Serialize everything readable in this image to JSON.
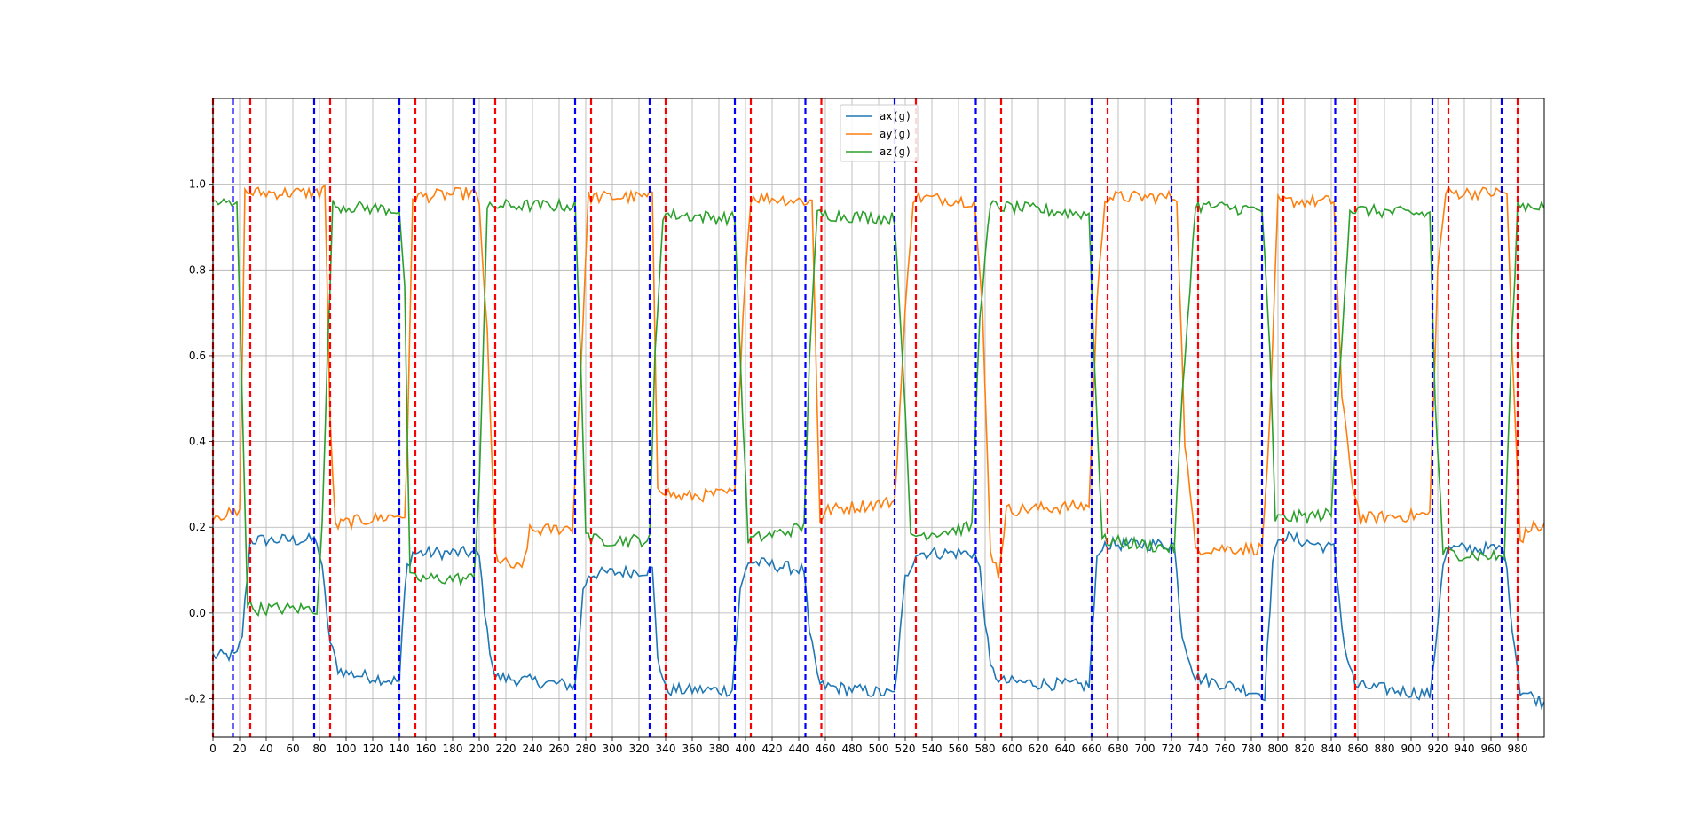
{
  "chart_data": {
    "type": "line",
    "title": "",
    "xlabel": "",
    "ylabel": "",
    "xlim": [
      0,
      1000
    ],
    "ylim": [
      -0.29,
      1.2
    ],
    "grid": true,
    "legend_position": "top-center",
    "x_ticks": [
      0,
      20,
      40,
      60,
      80,
      100,
      120,
      140,
      160,
      180,
      200,
      220,
      240,
      260,
      280,
      300,
      320,
      340,
      360,
      380,
      400,
      420,
      440,
      460,
      480,
      500,
      520,
      540,
      560,
      580,
      600,
      620,
      640,
      660,
      680,
      700,
      720,
      740,
      760,
      780,
      800,
      820,
      840,
      860,
      880,
      900,
      920,
      940,
      960,
      980
    ],
    "y_ticks": [
      -0.2,
      0.0,
      0.2,
      0.4,
      0.6,
      0.8,
      1.0
    ],
    "series": [
      {
        "name": "ax(g)",
        "color": "#1f77b4",
        "knots": [
          [
            0,
            -0.1
          ],
          [
            18,
            -0.1
          ],
          [
            22,
            -0.05
          ],
          [
            28,
            0.17
          ],
          [
            78,
            0.17
          ],
          [
            82,
            0.1
          ],
          [
            88,
            -0.07
          ],
          [
            94,
            -0.13
          ],
          [
            100,
            -0.14
          ],
          [
            140,
            -0.16
          ],
          [
            145,
            0.1
          ],
          [
            150,
            0.14
          ],
          [
            196,
            0.14
          ],
          [
            200,
            0.13
          ],
          [
            206,
            -0.05
          ],
          [
            212,
            -0.15
          ],
          [
            272,
            -0.17
          ],
          [
            278,
            0.05
          ],
          [
            282,
            0.09
          ],
          [
            330,
            0.1
          ],
          [
            334,
            -0.1
          ],
          [
            340,
            -0.18
          ],
          [
            390,
            -0.18
          ],
          [
            396,
            0.05
          ],
          [
            402,
            0.12
          ],
          [
            444,
            0.1
          ],
          [
            448,
            -0.05
          ],
          [
            456,
            -0.17
          ],
          [
            512,
            -0.19
          ],
          [
            520,
            0.08
          ],
          [
            528,
            0.14
          ],
          [
            572,
            0.14
          ],
          [
            576,
            0.1
          ],
          [
            584,
            -0.13
          ],
          [
            592,
            -0.16
          ],
          [
            658,
            -0.17
          ],
          [
            664,
            0.12
          ],
          [
            668,
            0.16
          ],
          [
            722,
            0.16
          ],
          [
            728,
            -0.05
          ],
          [
            738,
            -0.15
          ],
          [
            790,
            -0.19
          ],
          [
            796,
            0.12
          ],
          [
            802,
            0.18
          ],
          [
            842,
            0.15
          ],
          [
            850,
            -0.08
          ],
          [
            858,
            -0.17
          ],
          [
            915,
            -0.19
          ],
          [
            924,
            0.12
          ],
          [
            928,
            0.15
          ],
          [
            970,
            0.15
          ],
          [
            976,
            -0.03
          ],
          [
            982,
            -0.18
          ],
          [
            1000,
            -0.21
          ]
        ]
      },
      {
        "name": "ay(g)",
        "color": "#ff7f0e",
        "knots": [
          [
            0,
            0.23
          ],
          [
            20,
            0.23
          ],
          [
            24,
            0.98
          ],
          [
            80,
            0.98
          ],
          [
            84,
            1.0
          ],
          [
            88,
            0.45
          ],
          [
            92,
            0.2
          ],
          [
            98,
            0.21
          ],
          [
            145,
            0.23
          ],
          [
            150,
            0.97
          ],
          [
            196,
            0.98
          ],
          [
            200,
            0.95
          ],
          [
            206,
            0.65
          ],
          [
            212,
            0.14
          ],
          [
            216,
            0.12
          ],
          [
            232,
            0.1
          ],
          [
            238,
            0.19
          ],
          [
            270,
            0.2
          ],
          [
            276,
            0.55
          ],
          [
            282,
            0.97
          ],
          [
            330,
            0.97
          ],
          [
            334,
            0.3
          ],
          [
            342,
            0.28
          ],
          [
            350,
            0.27
          ],
          [
            392,
            0.28
          ],
          [
            398,
            0.7
          ],
          [
            404,
            0.97
          ],
          [
            450,
            0.96
          ],
          [
            456,
            0.22
          ],
          [
            462,
            0.24
          ],
          [
            512,
            0.26
          ],
          [
            520,
            0.7
          ],
          [
            526,
            0.97
          ],
          [
            572,
            0.96
          ],
          [
            578,
            0.7
          ],
          [
            584,
            0.15
          ],
          [
            590,
            0.09
          ],
          [
            596,
            0.24
          ],
          [
            658,
            0.25
          ],
          [
            664,
            0.72
          ],
          [
            670,
            0.97
          ],
          [
            724,
            0.97
          ],
          [
            730,
            0.4
          ],
          [
            738,
            0.15
          ],
          [
            788,
            0.15
          ],
          [
            794,
            0.45
          ],
          [
            800,
            0.96
          ],
          [
            842,
            0.96
          ],
          [
            848,
            0.5
          ],
          [
            856,
            0.3
          ],
          [
            862,
            0.22
          ],
          [
            914,
            0.23
          ],
          [
            920,
            0.8
          ],
          [
            926,
            0.98
          ],
          [
            972,
            0.98
          ],
          [
            976,
            0.6
          ],
          [
            982,
            0.17
          ],
          [
            990,
            0.2
          ],
          [
            1000,
            0.2
          ]
        ]
      },
      {
        "name": "az(g)",
        "color": "#2ca02c",
        "knots": [
          [
            0,
            0.96
          ],
          [
            18,
            0.95
          ],
          [
            22,
            0.5
          ],
          [
            26,
            0.02
          ],
          [
            30,
            0.01
          ],
          [
            78,
            0.01
          ],
          [
            82,
            0.2
          ],
          [
            86,
            0.6
          ],
          [
            90,
            0.95
          ],
          [
            140,
            0.94
          ],
          [
            144,
            0.75
          ],
          [
            148,
            0.08
          ],
          [
            196,
            0.08
          ],
          [
            200,
            0.3
          ],
          [
            206,
            0.94
          ],
          [
            212,
            0.95
          ],
          [
            272,
            0.95
          ],
          [
            276,
            0.6
          ],
          [
            280,
            0.2
          ],
          [
            284,
            0.17
          ],
          [
            328,
            0.17
          ],
          [
            332,
            0.6
          ],
          [
            338,
            0.93
          ],
          [
            392,
            0.92
          ],
          [
            396,
            0.6
          ],
          [
            402,
            0.17
          ],
          [
            444,
            0.2
          ],
          [
            448,
            0.6
          ],
          [
            454,
            0.93
          ],
          [
            512,
            0.92
          ],
          [
            518,
            0.6
          ],
          [
            524,
            0.18
          ],
          [
            570,
            0.2
          ],
          [
            576,
            0.7
          ],
          [
            584,
            0.95
          ],
          [
            658,
            0.93
          ],
          [
            662,
            0.6
          ],
          [
            668,
            0.17
          ],
          [
            722,
            0.15
          ],
          [
            728,
            0.5
          ],
          [
            738,
            0.95
          ],
          [
            788,
            0.94
          ],
          [
            794,
            0.6
          ],
          [
            798,
            0.22
          ],
          [
            840,
            0.23
          ],
          [
            846,
            0.55
          ],
          [
            854,
            0.94
          ],
          [
            914,
            0.93
          ],
          [
            918,
            0.5
          ],
          [
            924,
            0.14
          ],
          [
            970,
            0.13
          ],
          [
            974,
            0.5
          ],
          [
            980,
            0.95
          ],
          [
            1000,
            0.95
          ]
        ]
      }
    ],
    "vlines": {
      "blue": {
        "color": "#0000ff",
        "x": [
          15,
          76,
          140,
          196,
          272,
          328,
          392,
          445,
          512,
          573,
          660,
          720,
          788,
          843,
          916,
          968
        ]
      },
      "red": {
        "color": "#ff0000",
        "x": [
          0,
          28,
          88,
          152,
          212,
          284,
          340,
          404,
          457,
          528,
          592,
          672,
          740,
          804,
          858,
          928,
          980
        ]
      }
    }
  }
}
